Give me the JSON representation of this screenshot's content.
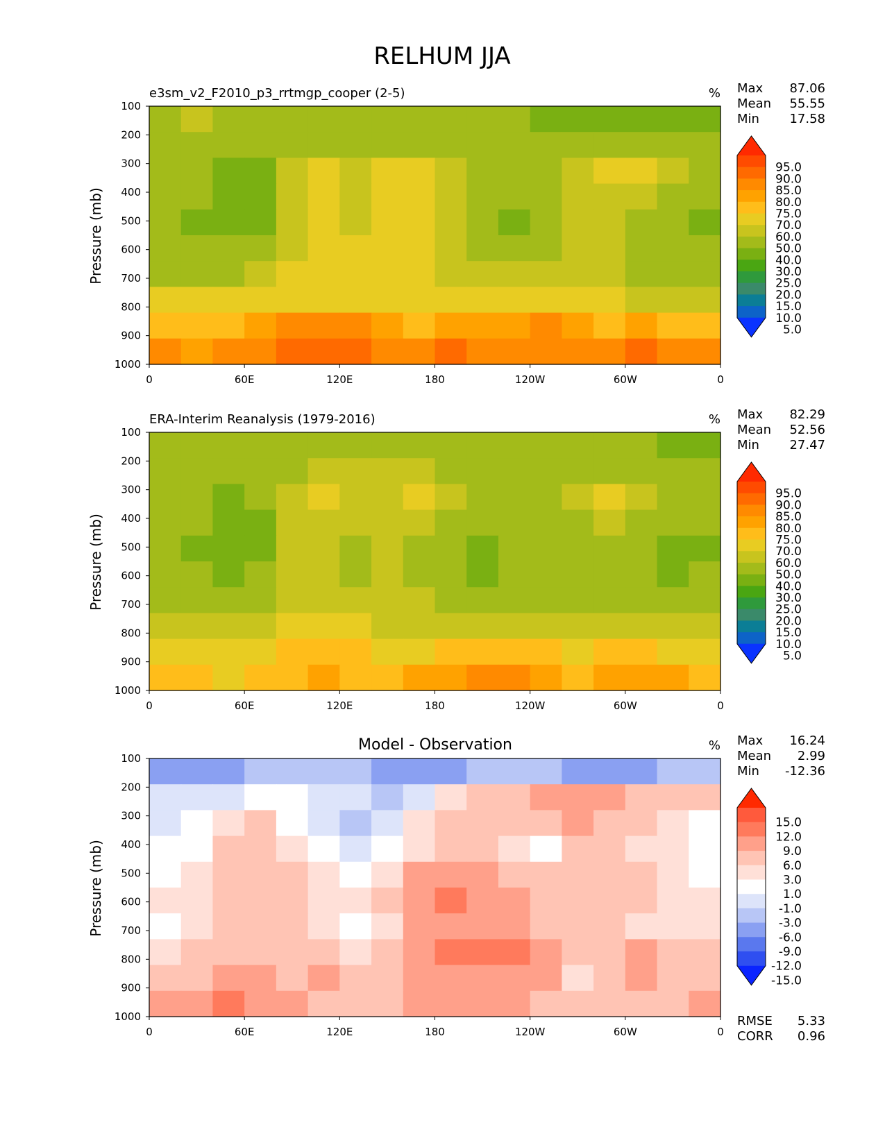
{
  "title": "RELHUM JJA",
  "chart_data": [
    {
      "type": "heatmap",
      "panel_title": "e3sm_v2_F2010_p3_rrtmgp_cooper (2-5)",
      "units": "%",
      "ylabel": "Pressure (mb)",
      "x_ticks": [
        "0",
        "60E",
        "120E",
        "180",
        "120W",
        "60W",
        "0"
      ],
      "y_ticks": [
        "100",
        "200",
        "300",
        "400",
        "500",
        "600",
        "700",
        "800",
        "900",
        "1000"
      ],
      "ylim": [
        1000,
        100
      ],
      "stats": [
        [
          "Max",
          "87.06"
        ],
        [
          "Mean",
          "55.55"
        ],
        [
          "Min",
          "17.58"
        ]
      ],
      "colorbar": {
        "levels": [
          "95.0",
          "90.0",
          "85.0",
          "80.0",
          "75.0",
          "70.0",
          "60.0",
          "50.0",
          "40.0",
          "30.0",
          "25.0",
          "20.0",
          "15.0",
          "10.0",
          "5.0"
        ],
        "colors": [
          "#ff2a00",
          "#ff4b00",
          "#ff6a00",
          "#ff8a00",
          "#ffa200",
          "#ffbd1a",
          "#e8cc22",
          "#c8c41e",
          "#a3bb1a",
          "#7ab012",
          "#4aa612",
          "#2f9a3c",
          "#3a8a6a",
          "#0b7e96",
          "#0d63c8",
          "#0a33ff"
        ]
      },
      "field": [
        [
          48,
          52,
          48,
          45,
          40,
          42,
          44,
          46,
          48,
          46,
          44,
          40,
          36,
          34,
          30,
          32,
          34,
          36
        ],
        [
          40,
          42,
          40,
          44,
          46,
          46,
          45,
          46,
          46,
          46,
          44,
          42,
          44,
          46,
          44,
          46,
          44,
          42
        ],
        [
          46,
          44,
          36,
          38,
          58,
          62,
          54,
          60,
          62,
          58,
          46,
          44,
          44,
          58,
          62,
          60,
          50,
          46
        ],
        [
          42,
          40,
          32,
          34,
          58,
          64,
          54,
          60,
          62,
          56,
          44,
          40,
          42,
          54,
          58,
          52,
          48,
          40
        ],
        [
          44,
          38,
          30,
          34,
          58,
          62,
          58,
          62,
          60,
          56,
          42,
          38,
          44,
          50,
          54,
          48,
          46,
          36
        ],
        [
          46,
          46,
          42,
          44,
          58,
          62,
          60,
          60,
          60,
          58,
          46,
          44,
          46,
          56,
          50,
          46,
          44,
          42
        ],
        [
          48,
          48,
          48,
          52,
          62,
          62,
          62,
          62,
          62,
          58,
          52,
          56,
          54,
          52,
          50,
          48,
          46,
          44
        ],
        [
          60,
          62,
          62,
          64,
          66,
          68,
          66,
          66,
          66,
          68,
          66,
          66,
          68,
          64,
          60,
          58,
          56,
          54
        ],
        [
          72,
          74,
          72,
          78,
          80,
          82,
          80,
          76,
          74,
          76,
          78,
          76,
          80,
          78,
          74,
          76,
          74,
          72
        ],
        [
          80,
          76,
          80,
          82,
          86,
          88,
          86,
          82,
          84,
          86,
          84,
          82,
          84,
          82,
          80,
          86,
          82,
          80
        ]
      ]
    },
    {
      "type": "heatmap",
      "panel_title": "ERA-Interim Reanalysis (1979-2016)",
      "units": "%",
      "ylabel": "Pressure (mb)",
      "x_ticks": [
        "0",
        "60E",
        "120E",
        "180",
        "120W",
        "60W",
        "0"
      ],
      "y_ticks": [
        "100",
        "200",
        "300",
        "400",
        "500",
        "600",
        "700",
        "800",
        "900",
        "1000"
      ],
      "ylim": [
        1000,
        100
      ],
      "stats": [
        [
          "Max",
          "82.29"
        ],
        [
          "Mean",
          "52.56"
        ],
        [
          "Min",
          "27.47"
        ]
      ],
      "colorbar": {
        "levels": [
          "95.0",
          "90.0",
          "85.0",
          "80.0",
          "75.0",
          "70.0",
          "60.0",
          "50.0",
          "40.0",
          "30.0",
          "25.0",
          "20.0",
          "15.0",
          "10.0",
          "5.0"
        ],
        "colors": [
          "#ff2a00",
          "#ff4b00",
          "#ff6a00",
          "#ff8a00",
          "#ffa200",
          "#ffbd1a",
          "#e8cc22",
          "#c8c41e",
          "#a3bb1a",
          "#7ab012",
          "#4aa612",
          "#2f9a3c",
          "#3a8a6a",
          "#0b7e96",
          "#0d63c8",
          "#0a33ff"
        ]
      },
      "field": [
        [
          44,
          44,
          42,
          42,
          44,
          44,
          44,
          44,
          42,
          42,
          40,
          40,
          40,
          42,
          42,
          40,
          38,
          36
        ],
        [
          44,
          44,
          44,
          46,
          48,
          50,
          50,
          52,
          50,
          48,
          46,
          44,
          44,
          46,
          48,
          46,
          44,
          42
        ],
        [
          46,
          48,
          38,
          40,
          56,
          60,
          56,
          58,
          60,
          54,
          46,
          44,
          44,
          58,
          60,
          56,
          46,
          44
        ],
        [
          42,
          40,
          34,
          36,
          54,
          56,
          50,
          54,
          52,
          48,
          42,
          40,
          40,
          48,
          50,
          46,
          42,
          40
        ],
        [
          40,
          38,
          34,
          36,
          50,
          52,
          48,
          50,
          48,
          40,
          36,
          40,
          44,
          46,
          46,
          40,
          36,
          36
        ],
        [
          42,
          42,
          38,
          40,
          50,
          50,
          48,
          50,
          46,
          42,
          38,
          42,
          44,
          46,
          44,
          40,
          38,
          40
        ],
        [
          46,
          46,
          44,
          46,
          52,
          52,
          50,
          52,
          50,
          48,
          46,
          46,
          48,
          48,
          46,
          46,
          44,
          44
        ],
        [
          56,
          56,
          54,
          56,
          60,
          60,
          60,
          58,
          56,
          54,
          54,
          56,
          58,
          58,
          56,
          56,
          54,
          54
        ],
        [
          64,
          64,
          62,
          64,
          70,
          72,
          70,
          68,
          68,
          70,
          72,
          72,
          70,
          68,
          70,
          70,
          68,
          66
        ],
        [
          70,
          70,
          68,
          70,
          74,
          76,
          74,
          72,
          76,
          78,
          80,
          80,
          76,
          74,
          76,
          78,
          76,
          72
        ]
      ]
    },
    {
      "type": "heatmap",
      "panel_title": "Model - Observation",
      "units": "%",
      "ylabel": "Pressure (mb)",
      "x_ticks": [
        "0",
        "60E",
        "120E",
        "180",
        "120W",
        "60W",
        "0"
      ],
      "y_ticks": [
        "100",
        "200",
        "300",
        "400",
        "500",
        "600",
        "700",
        "800",
        "900",
        "1000"
      ],
      "ylim": [
        1000,
        100
      ],
      "stats": [
        [
          "Max",
          "16.24"
        ],
        [
          "Mean",
          "2.99"
        ],
        [
          "Min",
          "-12.36"
        ]
      ],
      "extra_stats": [
        [
          "RMSE",
          "5.33"
        ],
        [
          "CORR",
          "0.96"
        ]
      ],
      "colorbar": {
        "levels": [
          "15.0",
          "12.0",
          "9.0",
          "6.0",
          "3.0",
          "1.0",
          "-1.0",
          "-3.0",
          "-6.0",
          "-9.0",
          "-12.0",
          "-15.0"
        ],
        "colors": [
          "#ff2a00",
          "#ff5a3c",
          "#ff7a5c",
          "#ffa08a",
          "#ffc4b4",
          "#ffe0d8",
          "#ffffff",
          "#dde4fa",
          "#b8c6f6",
          "#8aa0f2",
          "#5a78ee",
          "#2f4ff0",
          "#0a24ff"
        ]
      },
      "field": [
        [
          -8,
          -9,
          -7,
          -6,
          -5,
          -5,
          -6,
          -7,
          -8,
          -7,
          -6,
          -6,
          -6,
          -7,
          -8,
          -7,
          -6,
          -6
        ],
        [
          -3,
          -3,
          -2,
          -1,
          0,
          -2,
          -3,
          -4,
          -2,
          1,
          3,
          4,
          6,
          8,
          7,
          5,
          4,
          3
        ],
        [
          -2,
          -1,
          2,
          3,
          0,
          -2,
          -4,
          -2,
          1,
          3,
          4,
          5,
          5,
          6,
          5,
          3,
          2,
          -1
        ],
        [
          -1,
          0,
          3,
          4,
          1,
          -1,
          -2,
          0,
          2,
          4,
          5,
          2,
          0,
          3,
          5,
          2,
          1,
          -1
        ],
        [
          0,
          1,
          4,
          5,
          3,
          1,
          0,
          2,
          6,
          8,
          7,
          5,
          4,
          5,
          4,
          3,
          2,
          0
        ],
        [
          1,
          2,
          4,
          5,
          3,
          2,
          1,
          3,
          8,
          10,
          7,
          6,
          5,
          5,
          4,
          3,
          2,
          1
        ],
        [
          0,
          1,
          3,
          4,
          3,
          2,
          0,
          2,
          7,
          8,
          7,
          6,
          5,
          4,
          3,
          2,
          2,
          1
        ],
        [
          2,
          3,
          5,
          5,
          4,
          3,
          2,
          4,
          8,
          10,
          10,
          9,
          7,
          3,
          5,
          6,
          4,
          3
        ],
        [
          4,
          5,
          7,
          6,
          5,
          7,
          4,
          3,
          7,
          8,
          8,
          7,
          6,
          2,
          4,
          6,
          5,
          4
        ],
        [
          6,
          8,
          10,
          8,
          7,
          5,
          3,
          4,
          6,
          7,
          7,
          6,
          5,
          3,
          4,
          5,
          4,
          8
        ]
      ]
    }
  ]
}
